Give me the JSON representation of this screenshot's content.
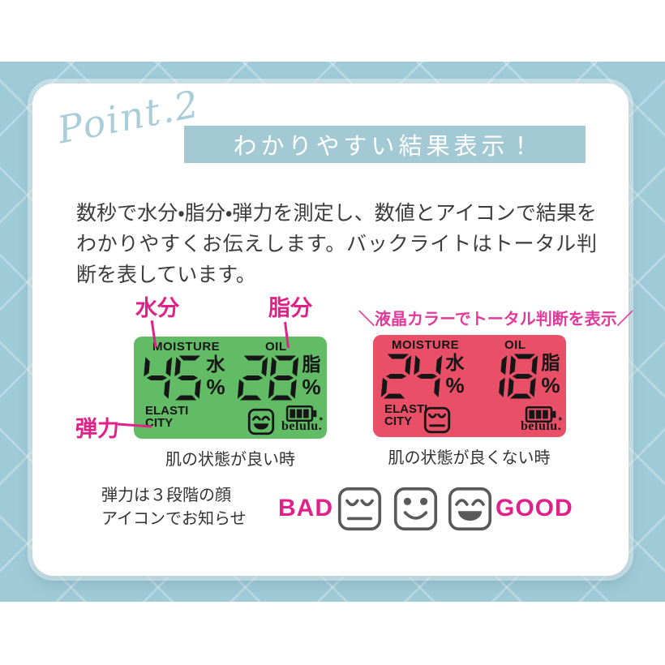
{
  "point_label": "Point.2",
  "banner": {
    "title": "わかりやすい結果表示！"
  },
  "intro_text": "数秒で水分・脂分・弾力を測定し、数値とアイコンで結果をわかりやすくお伝えします。バックライトはトータル判断を表しています。",
  "callouts": {
    "moisture": "水分",
    "oil": "脂分",
    "elasticity": "弾力",
    "lcd_note": "＼液晶カラーでトータル判断を表示／"
  },
  "displays": {
    "shared": {
      "moisture_label": "MOISTURE",
      "oil_label": "OIL",
      "moisture_kanji": "水",
      "oil_kanji": "脂",
      "percent": "%",
      "elasticity_line1": "ELASTI",
      "elasticity_line2": "CITY",
      "logo": "belulu.",
      "logo_mark": "✶"
    },
    "good": {
      "moisture_value": "45",
      "oil_value": "28",
      "caption": "肌の状態が良い時"
    },
    "bad": {
      "moisture_value": "24",
      "oil_value": "18",
      "caption": "肌の状態が良くない時"
    }
  },
  "legend": {
    "note_line1": "弾力は３段階の顔",
    "note_line2": "アイコンでお知らせ",
    "bad_label": "BAD",
    "good_label": "GOOD"
  },
  "colors": {
    "background_blue": "#9fcad7",
    "banner_blue": "#a3c9d4",
    "point_blue": "#a9ced9",
    "accent_pink": "#e0218a",
    "panel_good_green": "#62bc66",
    "panel_bad_red": "#e94f67",
    "lcd_ink": "#161616",
    "face_gray": "#595959"
  }
}
